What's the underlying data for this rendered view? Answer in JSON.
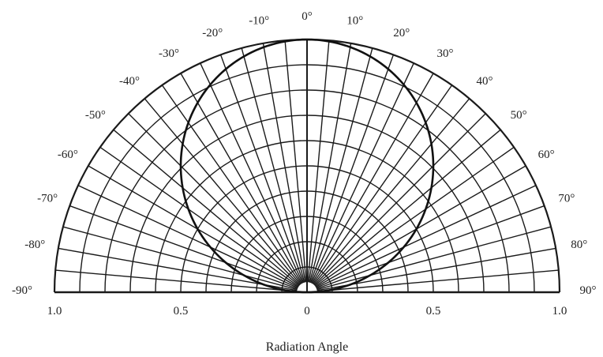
{
  "chart_data": {
    "type": "polar",
    "xlabel": "Radiation Angle",
    "angle_range": [
      -90,
      90
    ],
    "angle_ticks": [
      -90,
      -80,
      -70,
      -60,
      -50,
      -40,
      -30,
      -20,
      -10,
      0,
      10,
      20,
      30,
      40,
      50,
      60,
      70,
      80,
      90
    ],
    "angle_tick_labels": [
      "-90°",
      "-80°",
      "-70°",
      "-60°",
      "-50°",
      "-40°",
      "-30°",
      "-20°",
      "-10°",
      "0°",
      "10°",
      "20°",
      "30°",
      "40°",
      "50°",
      "60°",
      "70°",
      "80°",
      "90°"
    ],
    "radial_range": [
      0,
      1.0
    ],
    "radial_ticks": [
      1.0,
      0.5,
      0,
      0.5,
      1.0
    ],
    "radial_tick_labels": [
      "1.0",
      "0.5",
      "0",
      "0.5",
      "1.0"
    ],
    "grid": true,
    "series": [
      {
        "pattern": "cosine",
        "angles_deg": [
          -90,
          -80,
          -70,
          -60,
          -50,
          -40,
          -30,
          -20,
          -10,
          0,
          10,
          20,
          30,
          40,
          50,
          60,
          70,
          80,
          90
        ],
        "relative_intensity": [
          0.0,
          0.17,
          0.34,
          0.5,
          0.64,
          0.77,
          0.87,
          0.94,
          0.98,
          1.0,
          0.98,
          0.94,
          0.87,
          0.77,
          0.64,
          0.5,
          0.34,
          0.17,
          0.0
        ]
      }
    ],
    "colors": {
      "grid": "#1a1a1a",
      "curve": "#111111",
      "text": "#222222"
    }
  }
}
